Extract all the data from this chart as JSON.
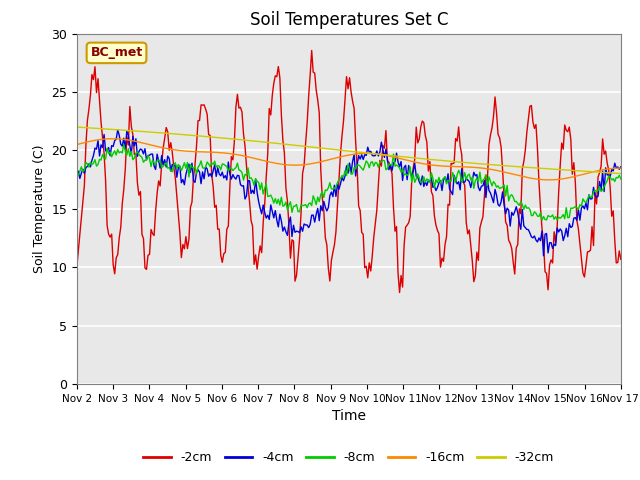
{
  "title": "Soil Temperatures Set C",
  "xlabel": "Time",
  "ylabel": "Soil Temperature (C)",
  "ylim": [
    0,
    30
  ],
  "background_color": "#e8e8e8",
  "legend_label": "BC_met",
  "legend_box_color": "#ffffcc",
  "legend_box_edge": "#cc9900",
  "series_colors": {
    "-2cm": "#dd0000",
    "-4cm": "#0000dd",
    "-8cm": "#00cc00",
    "-16cm": "#ff8800",
    "-32cm": "#cccc00"
  },
  "x_tick_labels": [
    "Nov 2",
    "Nov 3",
    "Nov 4",
    "Nov 5",
    "Nov 6",
    "Nov 7",
    "Nov 8",
    "Nov 9",
    "Nov 10",
    "Nov 11",
    "Nov 12",
    "Nov 13",
    "Nov 14",
    "Nov 15",
    "Nov 16",
    "Nov 17"
  ],
  "yticks": [
    0,
    5,
    10,
    15,
    20,
    25,
    30
  ],
  "n_days": 15,
  "pts_per_day": 24
}
